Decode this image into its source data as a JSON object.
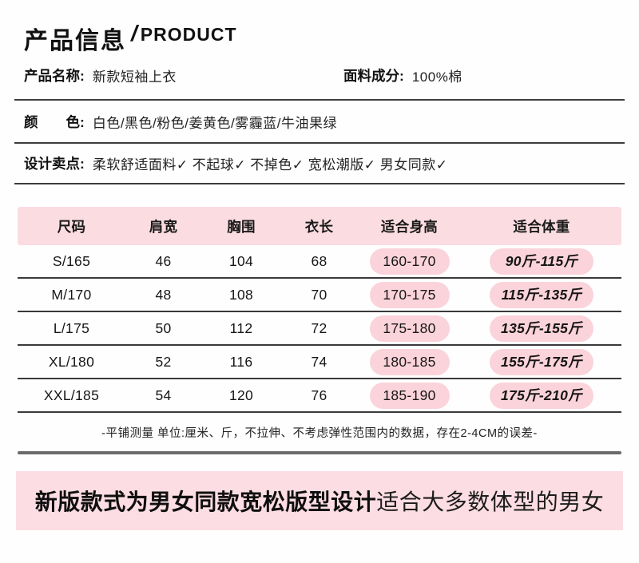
{
  "header": {
    "title_cn": "产品信息",
    "title_slash": "/",
    "title_en": "PRODUCT"
  },
  "info": {
    "product_name_label": "产品名称:",
    "product_name_value": "新款短袖上衣",
    "fabric_label": "面料成分:",
    "fabric_value": "100%棉",
    "color_label": "颜　　色:",
    "color_value": "白色/黑色/粉色/姜黄色/雾霾蓝/牛油果绿",
    "selling_point_label": "设计卖点:",
    "selling_point_value": "柔软舒适面料✓ 不起球✓ 不掉色✓ 宽松潮版✓ 男女同款✓"
  },
  "size_table": {
    "columns": [
      "尺码",
      "肩宽",
      "胸围",
      "衣长",
      "适合身高",
      "适合体重"
    ],
    "rows": [
      {
        "size": "S/165",
        "shoulder": "46",
        "bust": "104",
        "length": "68",
        "height": "160-170",
        "weight": "90斤-115斤"
      },
      {
        "size": "M/170",
        "shoulder": "48",
        "bust": "108",
        "length": "70",
        "height": "170-175",
        "weight": "115斤-135斤"
      },
      {
        "size": "L/175",
        "shoulder": "50",
        "bust": "112",
        "length": "72",
        "height": "175-180",
        "weight": "135斤-155斤"
      },
      {
        "size": "XL/180",
        "shoulder": "52",
        "bust": "116",
        "length": "74",
        "height": "180-185",
        "weight": "155斤-175斤"
      },
      {
        "size": "XXL/185",
        "shoulder": "54",
        "bust": "120",
        "length": "76",
        "height": "185-190",
        "weight": "175斤-210斤"
      }
    ],
    "note": "-平铺测量 单位:厘米、斤，不拉伸、不考虑弹性范围内的数据，存在2-4CM的误差-"
  },
  "footer": {
    "bold_text": "新版款式为男女同款宽松版型设计",
    "regular_text": "适合大多数体型的男女"
  },
  "colors": {
    "table_header_pink": "#fbdce1",
    "pill_pink": "#fbd3da",
    "banner_pink": "#fcdde3",
    "divider_dark": "#3a3a3a",
    "divider_gray": "#6b6b6b",
    "text_black": "#111111"
  }
}
